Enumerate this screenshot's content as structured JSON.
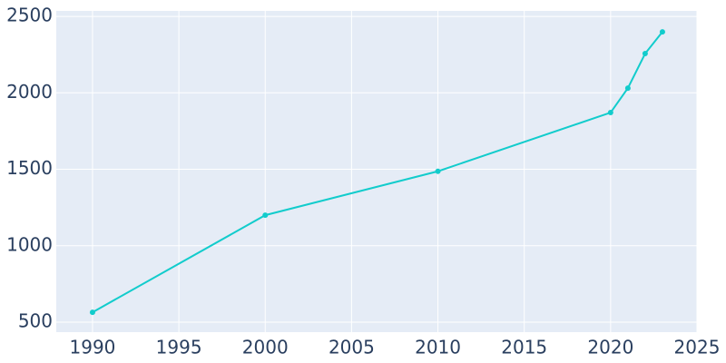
{
  "chart_data": {
    "type": "line",
    "x": [
      1990,
      2000,
      2010,
      2020,
      2021,
      2022,
      2023
    ],
    "series": [
      {
        "color": "#12cccc",
        "values": [
          565,
          1200,
          1487,
          1871,
          2031,
          2257,
          2399
        ]
      }
    ],
    "xlim": [
      1987.9,
      2025
    ],
    "xticks": [
      1990,
      1995,
      2000,
      2005,
      2010,
      2015,
      2020,
      2025
    ],
    "ylim": [
      435,
      2536
    ],
    "yticks": [
      500,
      1000,
      1500,
      2000,
      2500
    ],
    "grid": true
  }
}
